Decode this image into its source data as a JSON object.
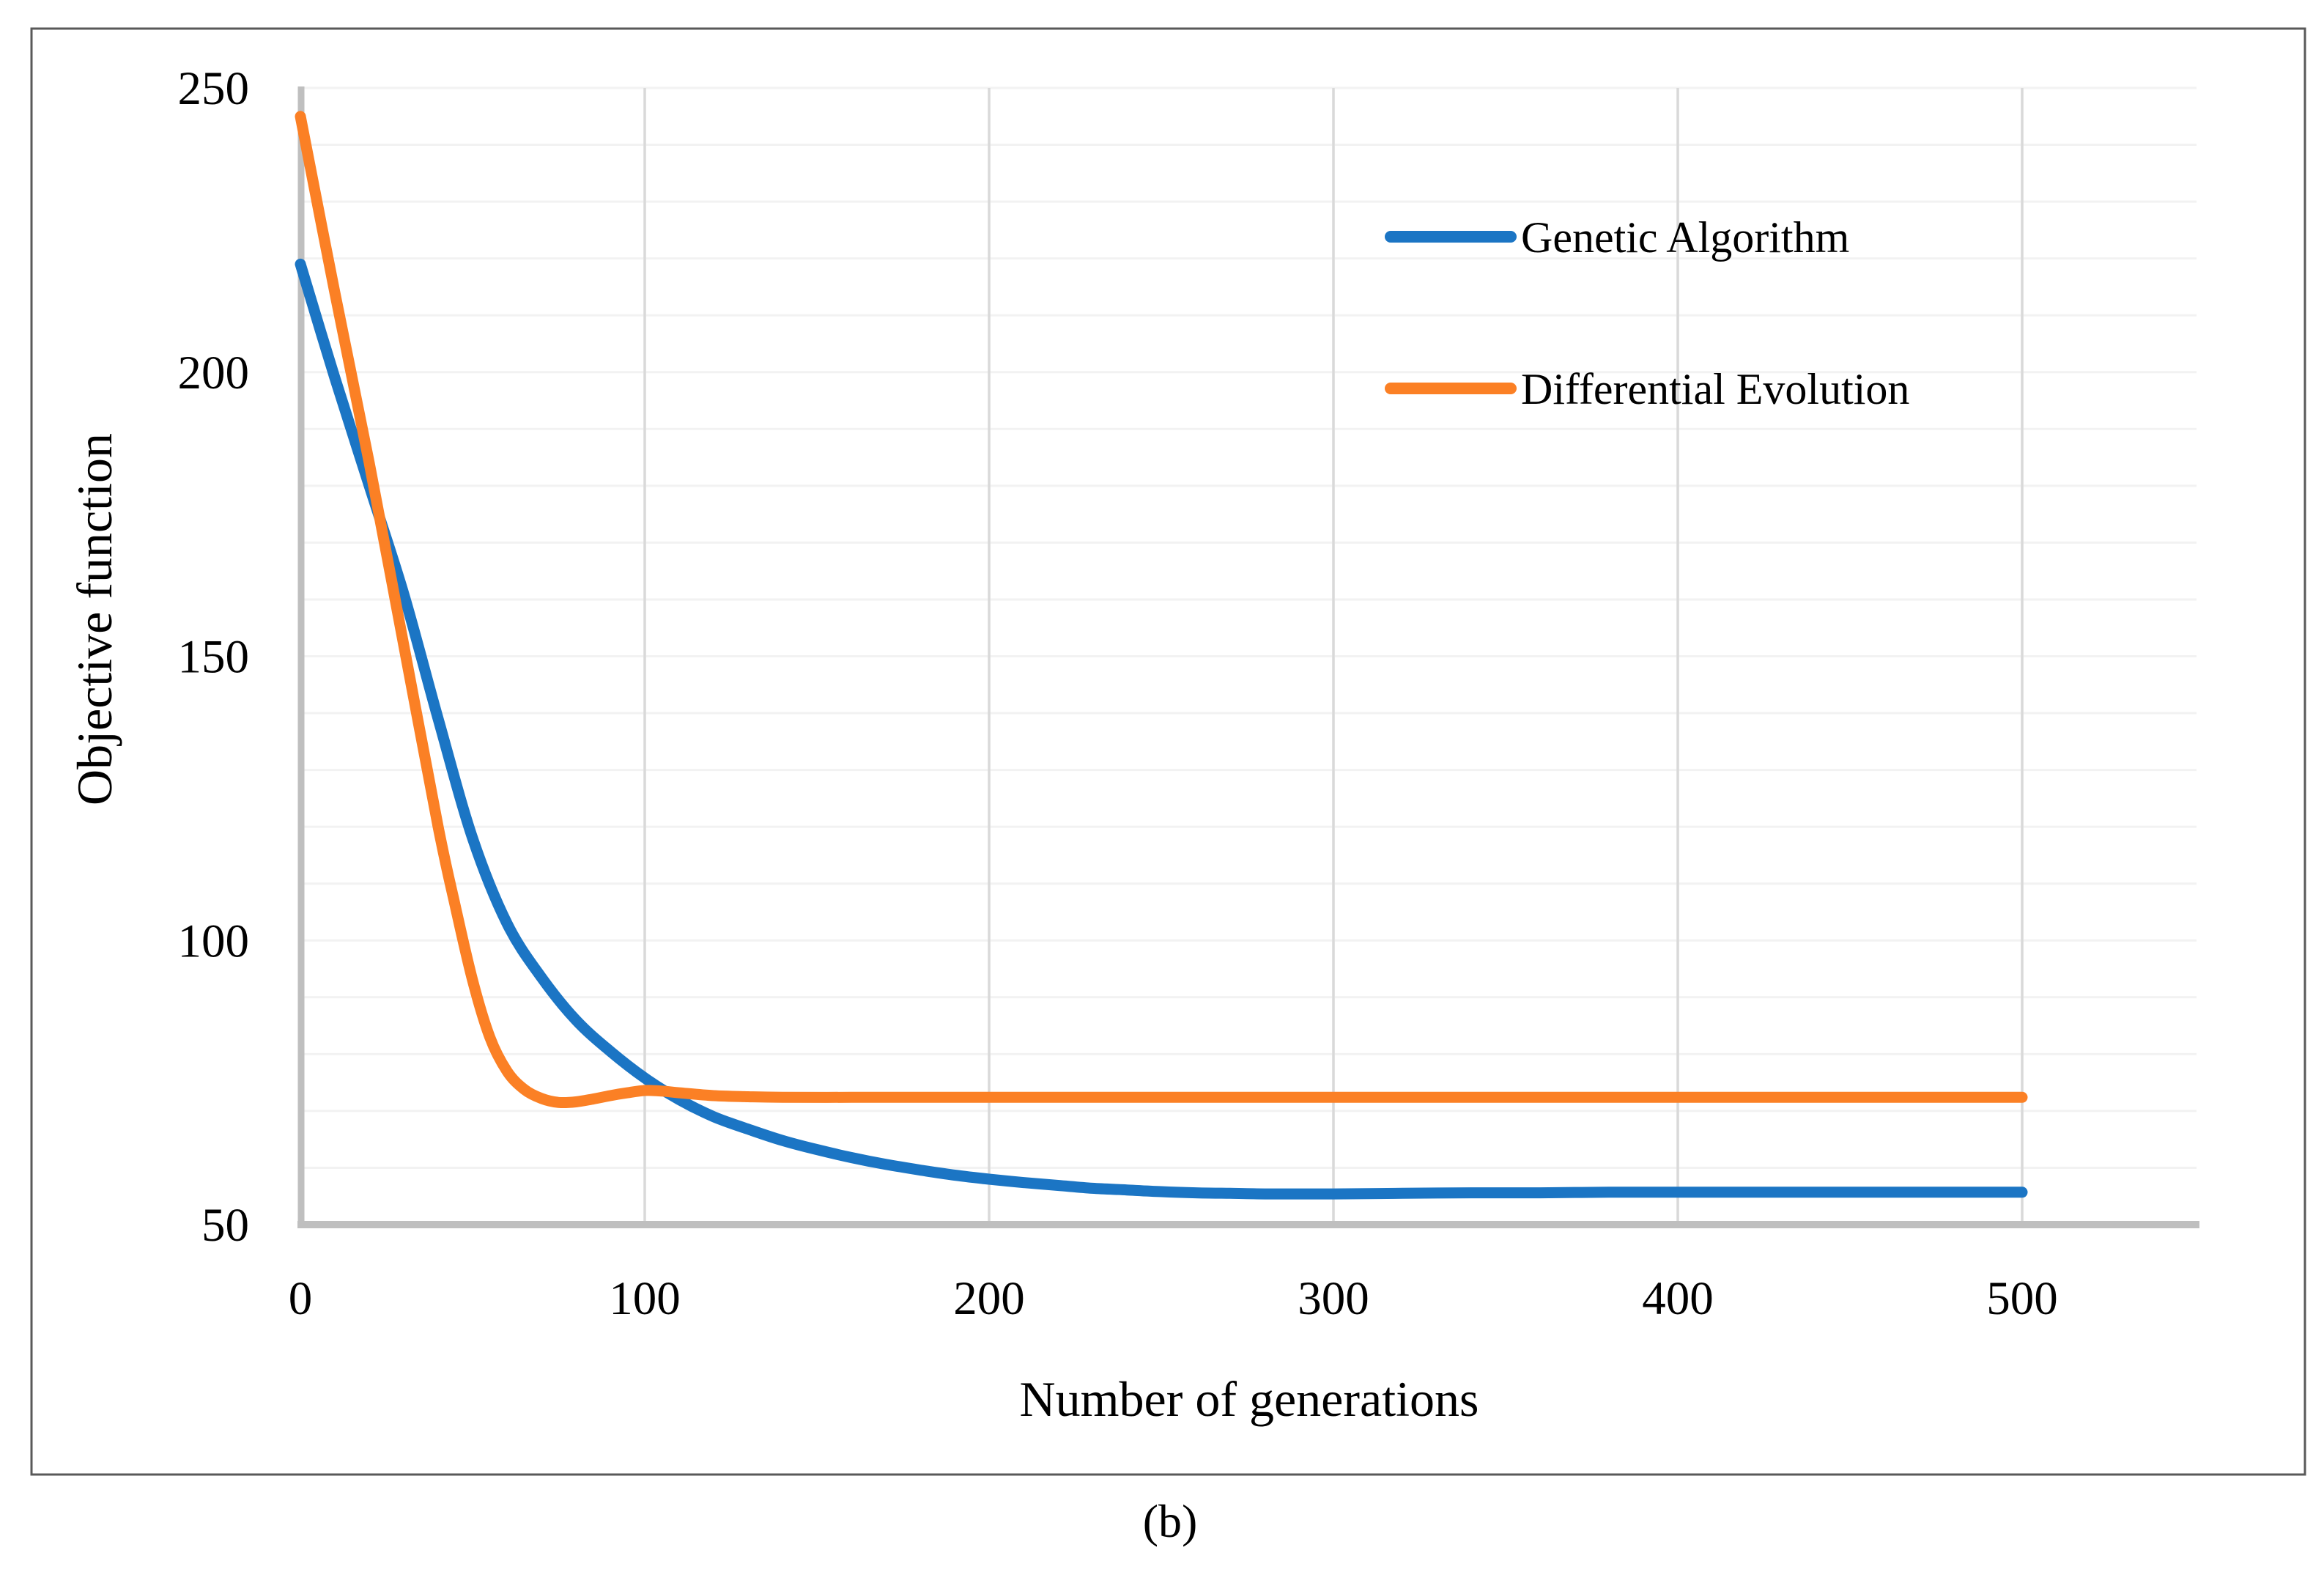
{
  "figure": {
    "caption": "(b)"
  },
  "colors": {
    "axis_line": "#BFBFBF",
    "grid_minor": "#F2F2F2",
    "grid_major": "#D9D9D9",
    "frame_border": "#595959",
    "text": "#000000",
    "background": "#FFFFFF",
    "series_blue": "#1B75C4",
    "series_orange": "#FB8025"
  },
  "chart_data": {
    "type": "line",
    "title": "",
    "xlabel": "Number of generations",
    "ylabel": "Objective function",
    "xlim": [
      0,
      548
    ],
    "ylim": [
      50,
      250
    ],
    "x_ticks": [
      0,
      100,
      200,
      300,
      400,
      500
    ],
    "y_ticks": [
      50,
      100,
      150,
      200,
      250
    ],
    "y_minor_step": 10,
    "grid": {
      "minor_horizontal": true,
      "major_vertical": true
    },
    "legend_position": "upper-right-inside",
    "series": [
      {
        "name": "Genetic Algorithm",
        "color": "#1B75C4",
        "points": [
          [
            0,
            219
          ],
          [
            10,
            199
          ],
          [
            20,
            180
          ],
          [
            30,
            161
          ],
          [
            40,
            139
          ],
          [
            50,
            118
          ],
          [
            60,
            103
          ],
          [
            70,
            93.5
          ],
          [
            80,
            86
          ],
          [
            90,
            80.5
          ],
          [
            100,
            75.8
          ],
          [
            110,
            72
          ],
          [
            120,
            69
          ],
          [
            130,
            66.8
          ],
          [
            140,
            64.8
          ],
          [
            150,
            63.2
          ],
          [
            160,
            61.8
          ],
          [
            170,
            60.6
          ],
          [
            180,
            59.6
          ],
          [
            190,
            58.7
          ],
          [
            200,
            58
          ],
          [
            210,
            57.4
          ],
          [
            220,
            56.9
          ],
          [
            230,
            56.4
          ],
          [
            240,
            56.1
          ],
          [
            250,
            55.8
          ],
          [
            260,
            55.6
          ],
          [
            270,
            55.5
          ],
          [
            280,
            55.4
          ],
          [
            290,
            55.4
          ],
          [
            300,
            55.4
          ],
          [
            320,
            55.5
          ],
          [
            340,
            55.6
          ],
          [
            360,
            55.6
          ],
          [
            380,
            55.7
          ],
          [
            400,
            55.7
          ],
          [
            440,
            55.7
          ],
          [
            480,
            55.7
          ],
          [
            500,
            55.7
          ]
        ]
      },
      {
        "name": "Differential Evolution",
        "color": "#FB8025",
        "points": [
          [
            0,
            245
          ],
          [
            10,
            214
          ],
          [
            20,
            184
          ],
          [
            30,
            152
          ],
          [
            40,
            120
          ],
          [
            45,
            106
          ],
          [
            50,
            93
          ],
          [
            55,
            83
          ],
          [
            60,
            77
          ],
          [
            65,
            73.8
          ],
          [
            70,
            72.2
          ],
          [
            75,
            71.5
          ],
          [
            80,
            71.6
          ],
          [
            85,
            72.1
          ],
          [
            90,
            72.7
          ],
          [
            95,
            73.2
          ],
          [
            100,
            73.6
          ],
          [
            105,
            73.5
          ],
          [
            110,
            73.2
          ],
          [
            120,
            72.7
          ],
          [
            130,
            72.5
          ],
          [
            140,
            72.4
          ],
          [
            160,
            72.4
          ],
          [
            180,
            72.4
          ],
          [
            200,
            72.4
          ],
          [
            250,
            72.4
          ],
          [
            300,
            72.4
          ],
          [
            350,
            72.4
          ],
          [
            400,
            72.4
          ],
          [
            450,
            72.4
          ],
          [
            500,
            72.4
          ]
        ]
      }
    ]
  }
}
